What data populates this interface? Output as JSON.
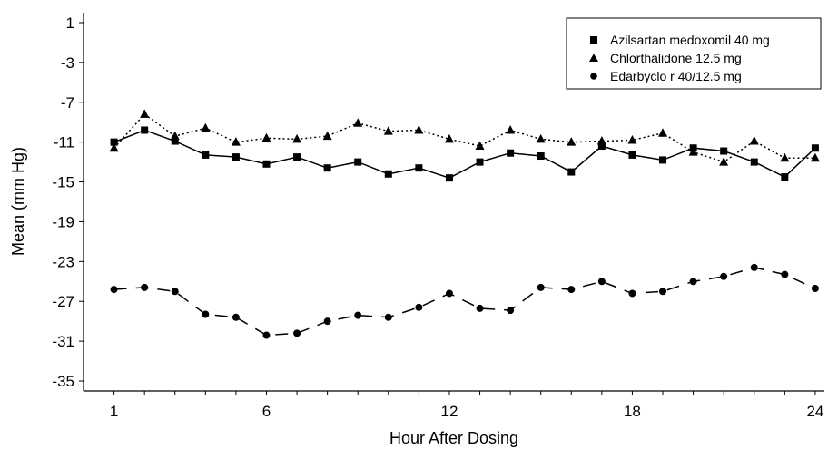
{
  "chart_data": {
    "type": "line",
    "xlabel": "Hour After Dosing",
    "ylabel": "Mean (mm Hg)",
    "xlim": [
      0,
      24.3
    ],
    "ylim": [
      -36,
      2
    ],
    "x_ticks": [
      1,
      6,
      12,
      18,
      24
    ],
    "y_ticks": [
      1,
      -3,
      -7,
      -11,
      -15,
      -19,
      -23,
      -27,
      -31,
      -35
    ],
    "grid": false,
    "legend_position": "top-right",
    "series": [
      {
        "name": "Azilsartan medoxomil 40 mg",
        "marker": "square",
        "line_style": "solid",
        "x": [
          1,
          2,
          3,
          4,
          5,
          6,
          7,
          8,
          9,
          10,
          11,
          12,
          13,
          14,
          15,
          16,
          17,
          18,
          19,
          20,
          21,
          22,
          23,
          24
        ],
        "values": [
          -11.0,
          -9.8,
          -10.9,
          -12.3,
          -12.5,
          -13.2,
          -12.5,
          -13.6,
          -13.0,
          -14.2,
          -13.6,
          -14.6,
          -13.0,
          -12.1,
          -12.4,
          -14.0,
          -11.4,
          -12.3,
          -12.8,
          -11.6,
          -11.9,
          -13.0,
          -14.5,
          -11.6
        ]
      },
      {
        "name": "Chlorthalidone 12.5 mg",
        "marker": "triangle",
        "line_style": "dotted",
        "x": [
          1,
          2,
          3,
          4,
          5,
          6,
          7,
          8,
          9,
          10,
          11,
          12,
          13,
          14,
          15,
          16,
          17,
          18,
          19,
          20,
          21,
          22,
          23,
          24
        ],
        "values": [
          -11.6,
          -8.2,
          -10.4,
          -9.6,
          -11.0,
          -10.6,
          -10.7,
          -10.4,
          -9.1,
          -9.9,
          -9.8,
          -10.7,
          -11.4,
          -9.8,
          -10.7,
          -11.0,
          -10.9,
          -10.8,
          -10.1,
          -12.0,
          -13.0,
          -10.9,
          -12.6,
          -12.6
        ]
      },
      {
        "name": "Edarbyclo r 40/12.5 mg",
        "marker": "circle",
        "line_style": "dashed",
        "x": [
          1,
          2,
          3,
          4,
          5,
          6,
          7,
          8,
          9,
          10,
          11,
          12,
          13,
          14,
          15,
          16,
          17,
          18,
          19,
          20,
          21,
          22,
          23,
          24
        ],
        "values": [
          -25.8,
          -25.6,
          -26.0,
          -28.3,
          -28.6,
          -30.4,
          -30.2,
          -29.0,
          -28.4,
          -28.6,
          -27.6,
          -26.2,
          -27.7,
          -27.9,
          -25.6,
          -25.8,
          -25.0,
          -26.2,
          -26.0,
          -25.0,
          -24.5,
          -23.6,
          -24.3,
          -25.7
        ]
      }
    ]
  }
}
